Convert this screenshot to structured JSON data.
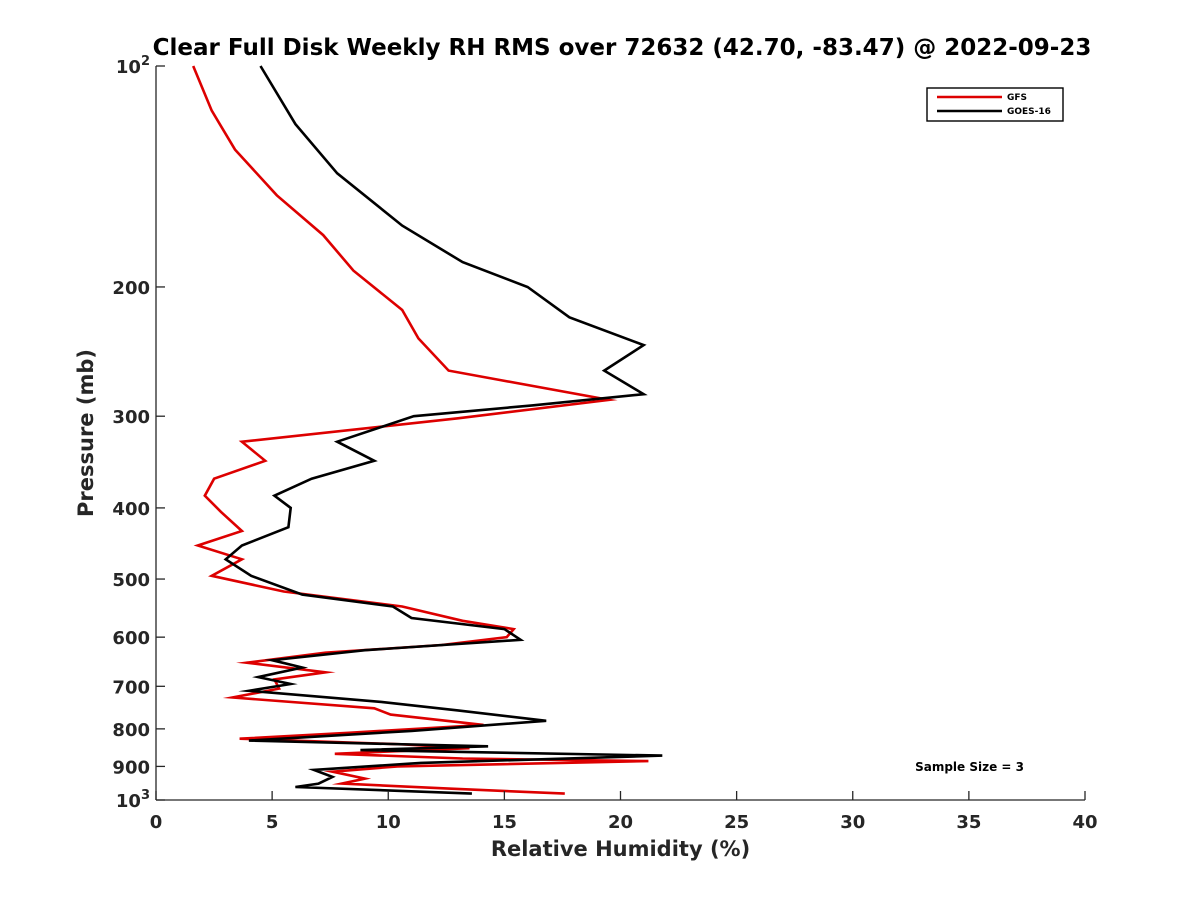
{
  "chart_data": {
    "type": "line",
    "title": "Clear Full Disk Weekly RH RMS over 72632 (42.70, -83.47) @ 2022-09-23",
    "xlabel": "Relative Humidity (%)",
    "ylabel": "Pressure (mb)",
    "xlim": [
      0,
      40
    ],
    "ylim": [
      100,
      1000
    ],
    "yscale": "log",
    "y_reversed": true,
    "grid": false,
    "legend_position": "top-right",
    "x_ticks": [
      0,
      5,
      10,
      15,
      20,
      25,
      30,
      35,
      40
    ],
    "x_tick_labels": [
      "0",
      "5",
      "10",
      "15",
      "20",
      "25",
      "30",
      "35",
      "40"
    ],
    "y_ticks": [
      100,
      200,
      300,
      400,
      500,
      600,
      700,
      800,
      900,
      1000
    ],
    "y_tick_labels": [
      {
        "base": "10",
        "exp": "2"
      },
      {
        "base": "200",
        "exp": ""
      },
      {
        "base": "300",
        "exp": ""
      },
      {
        "base": "400",
        "exp": ""
      },
      {
        "base": "500",
        "exp": ""
      },
      {
        "base": "600",
        "exp": ""
      },
      {
        "base": "700",
        "exp": ""
      },
      {
        "base": "800",
        "exp": ""
      },
      {
        "base": "900",
        "exp": ""
      },
      {
        "base": "10",
        "exp": "3"
      }
    ],
    "annotation": "Sample Size = 3",
    "series": [
      {
        "name": "GFS",
        "color": "#dd0000",
        "points": [
          [
            1.6,
            100
          ],
          [
            2.4,
            115
          ],
          [
            3.4,
            130
          ],
          [
            5.2,
            150
          ],
          [
            7.2,
            170
          ],
          [
            8.5,
            190
          ],
          [
            10.6,
            215
          ],
          [
            11.3,
            235
          ],
          [
            12.6,
            260
          ],
          [
            19.5,
            285
          ],
          [
            13.0,
            302
          ],
          [
            3.7,
            325
          ],
          [
            4.7,
            345
          ],
          [
            2.5,
            365
          ],
          [
            2.1,
            385
          ],
          [
            2.8,
            405
          ],
          [
            3.7,
            430
          ],
          [
            1.8,
            450
          ],
          [
            3.7,
            470
          ],
          [
            2.4,
            495
          ],
          [
            5.5,
            520
          ],
          [
            10.6,
            545
          ],
          [
            13.2,
            570
          ],
          [
            15.4,
            585
          ],
          [
            15.1,
            600
          ],
          [
            12.3,
            615
          ],
          [
            7.3,
            630
          ],
          [
            3.9,
            650
          ],
          [
            7.3,
            670
          ],
          [
            5.1,
            685
          ],
          [
            5.3,
            705
          ],
          [
            3.3,
            725
          ],
          [
            9.4,
            750
          ],
          [
            10.1,
            765
          ],
          [
            14.1,
            790
          ],
          [
            8.3,
            810
          ],
          [
            3.6,
            825
          ],
          [
            10.7,
            840
          ],
          [
            13.5,
            850
          ],
          [
            7.7,
            865
          ],
          [
            13.2,
            878
          ],
          [
            21.2,
            885
          ],
          [
            10.4,
            900
          ],
          [
            7.6,
            915
          ],
          [
            9.0,
            935
          ],
          [
            8.0,
            950
          ],
          [
            12.6,
            965
          ],
          [
            17.6,
            980
          ]
        ]
      },
      {
        "name": "GOES-16",
        "color": "#000000",
        "points": [
          [
            4.5,
            100
          ],
          [
            6.0,
            120
          ],
          [
            7.8,
            140
          ],
          [
            10.6,
            165
          ],
          [
            13.2,
            185
          ],
          [
            16.0,
            200
          ],
          [
            17.8,
            220
          ],
          [
            21.0,
            240
          ],
          [
            19.3,
            260
          ],
          [
            21.0,
            280
          ],
          [
            16.2,
            290
          ],
          [
            11.1,
            300
          ],
          [
            7.8,
            325
          ],
          [
            9.4,
            345
          ],
          [
            6.7,
            365
          ],
          [
            5.1,
            385
          ],
          [
            5.8,
            400
          ],
          [
            5.7,
            425
          ],
          [
            3.7,
            450
          ],
          [
            3.0,
            470
          ],
          [
            4.1,
            495
          ],
          [
            6.3,
            525
          ],
          [
            10.2,
            545
          ],
          [
            11.0,
            565
          ],
          [
            15.0,
            585
          ],
          [
            15.7,
            605
          ],
          [
            9.0,
            625
          ],
          [
            5.0,
            645
          ],
          [
            6.3,
            660
          ],
          [
            4.4,
            680
          ],
          [
            5.8,
            695
          ],
          [
            4.0,
            710
          ],
          [
            9.7,
            735
          ],
          [
            13.0,
            755
          ],
          [
            16.8,
            780
          ],
          [
            11.0,
            805
          ],
          [
            4.0,
            830
          ],
          [
            14.3,
            845
          ],
          [
            8.8,
            855
          ],
          [
            21.8,
            870
          ],
          [
            11.4,
            890
          ],
          [
            6.8,
            910
          ],
          [
            7.6,
            930
          ],
          [
            7.0,
            950
          ],
          [
            6.0,
            960
          ],
          [
            13.6,
            980
          ]
        ]
      }
    ]
  }
}
